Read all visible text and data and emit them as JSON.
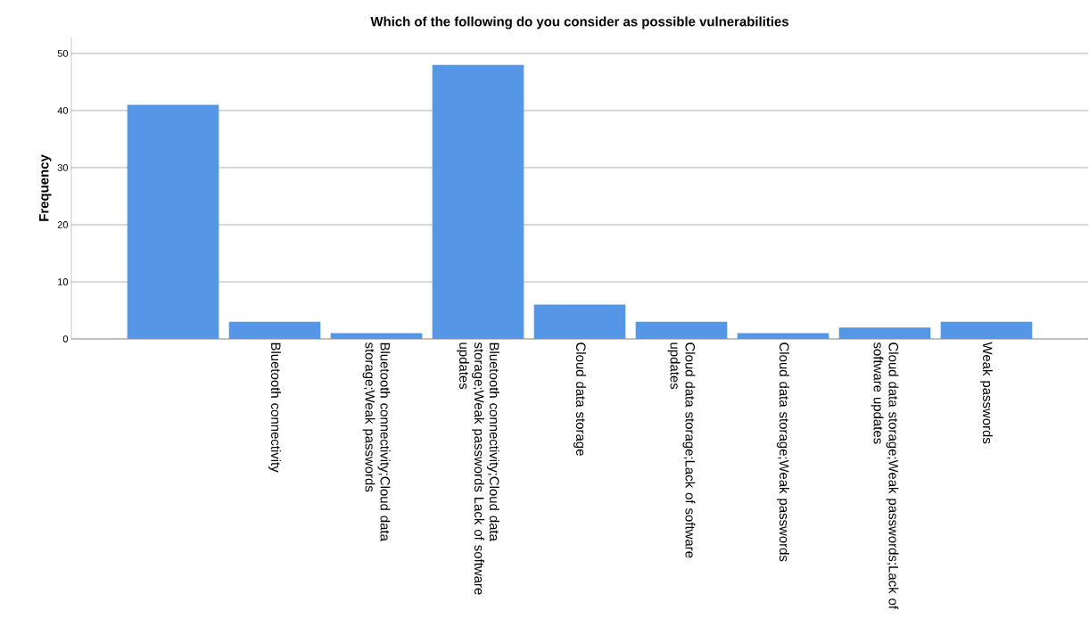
{
  "chart_data": {
    "type": "bar",
    "title": "Which of the following do you consider as possible vulnerabilities",
    "ylabel": "Frequency",
    "categories": [
      null,
      "Bluetooth connectivity",
      "Bluetooth connectivity;Cloud data storage;Weak passwords",
      "Bluetooth connectivity;Cloud data storage;Weak passwords Lack of software updates",
      "Cloud data storage",
      "Cloud data storage;Lack of software updates",
      "Cloud data storage;Weak passwords",
      "Cloud data storage;Weak passwords;Lack of software updates",
      "Weak passwords"
    ],
    "values": [
      41,
      3,
      1,
      48,
      6,
      3,
      1,
      2,
      3
    ],
    "color": "#5596e6",
    "ylim": [
      0,
      52.8
    ],
    "yticks": [
      0,
      10,
      20,
      30,
      40,
      50
    ],
    "grid": "y"
  }
}
